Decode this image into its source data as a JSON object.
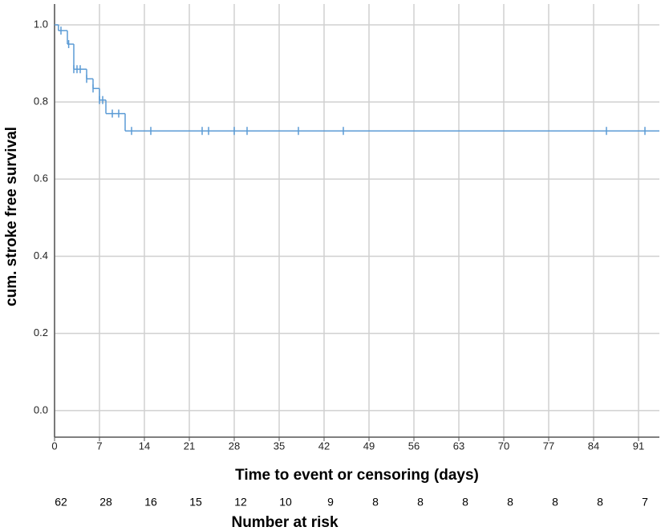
{
  "chart_data": {
    "type": "step",
    "xlabel": "Time to event or censoring (days)",
    "ylabel": "cum. stroke free survival",
    "xlim": [
      0,
      94.25
    ],
    "ylim": [
      -0.069,
      1.054
    ],
    "xticks": [
      0,
      7,
      14,
      21,
      28,
      35,
      42,
      49,
      56,
      63,
      70,
      77,
      84,
      91
    ],
    "yticks": [
      {
        "value": 0,
        "label": "0.0"
      },
      {
        "value": 0.2,
        "label": "0.2"
      },
      {
        "value": 0.4,
        "label": "0.4"
      },
      {
        "value": 0.6,
        "label": "0.6"
      },
      {
        "value": 0.8,
        "label": "0.8"
      },
      {
        "value": 1,
        "label": "1.0"
      }
    ],
    "grid": true,
    "color": "#5b9bd5",
    "series": [
      {
        "x": [
          0,
          0.6,
          2,
          3,
          5,
          6,
          7,
          8,
          11
        ],
        "values": [
          1,
          0.985,
          0.95,
          0.885,
          0.86,
          0.835,
          0.805,
          0.77,
          0.725
        ]
      }
    ],
    "censored": {
      "x": [
        1,
        2.2,
        3,
        3.5,
        4,
        5,
        6,
        7,
        7.5,
        9,
        10,
        12,
        15,
        23,
        24,
        28,
        30,
        38,
        45,
        86,
        92
      ],
      "values": [
        0.985,
        0.95,
        0.885,
        0.885,
        0.885,
        0.86,
        0.835,
        0.805,
        0.805,
        0.77,
        0.77,
        0.725,
        0.725,
        0.725,
        0.725,
        0.725,
        0.725,
        0.725,
        0.725,
        0.725,
        0.725
      ]
    },
    "number_at_risk": {
      "label": "Number at risk",
      "values": [
        62,
        28,
        16,
        15,
        12,
        10,
        9,
        8,
        8,
        8,
        8,
        8,
        8,
        7
      ]
    }
  }
}
